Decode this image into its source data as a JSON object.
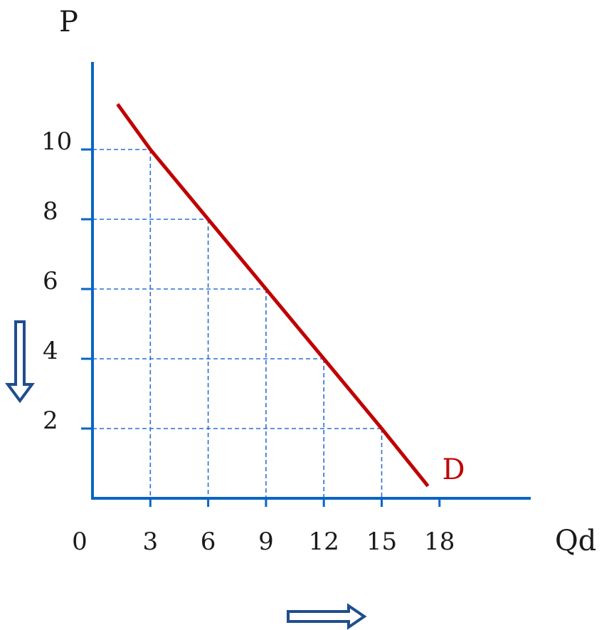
{
  "chart_data": {
    "type": "line",
    "ylabel": "P",
    "xlabel": "Qd",
    "origin_label": "0",
    "x_ticks": [
      3,
      6,
      9,
      12,
      15,
      18
    ],
    "y_ticks": [
      2,
      4,
      6,
      8,
      10
    ],
    "xlim": [
      0,
      22.5
    ],
    "ylim": [
      0,
      12.3
    ],
    "grid": "dashed guide lines at labeled points",
    "series": [
      {
        "name": "D",
        "color": "#c00000",
        "x": [
          1.3,
          3,
          6,
          9,
          12,
          15,
          17.4
        ],
        "y": [
          11.3,
          10,
          8,
          6,
          4,
          2,
          0.35
        ]
      }
    ],
    "guide_points": [
      {
        "x": 3,
        "y": 10
      },
      {
        "x": 6,
        "y": 8
      },
      {
        "x": 9,
        "y": 6
      },
      {
        "x": 12,
        "y": 4
      },
      {
        "x": 15,
        "y": 2
      }
    ],
    "annotations": [
      {
        "icon": "down-arrow-icon",
        "meaning": "price falls"
      },
      {
        "icon": "right-arrow-icon",
        "meaning": "quantity demanded rises"
      }
    ]
  },
  "colors": {
    "axis": "#0a64c8",
    "grid": "#2a6fd6",
    "curve": "#c00000",
    "arrow": "#1f4e8c",
    "text": "#1a1a1a"
  }
}
